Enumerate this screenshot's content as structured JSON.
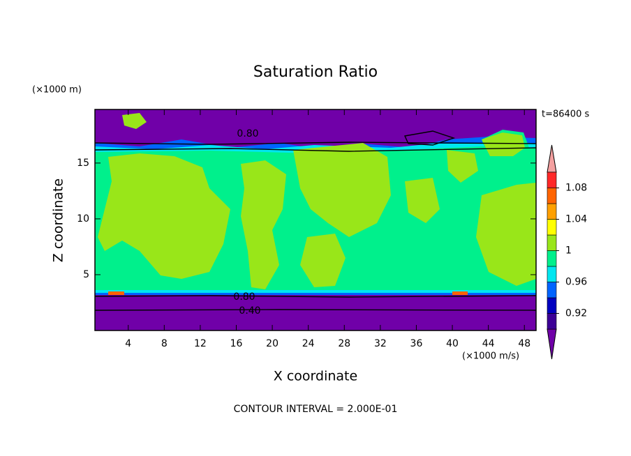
{
  "chart_data": {
    "type": "contourf",
    "title": "Saturation Ratio",
    "y_units": "(×1000 m)",
    "x_units": "(×1000 m/s)",
    "time_label": "t=86400 s",
    "x_label": "X coordinate",
    "y_label": "Z coordinate",
    "footer": "CONTOUR INTERVAL = 2.000E-01",
    "xlim": [
      0.3,
      49.3
    ],
    "xticks": [
      4,
      8,
      12,
      16,
      20,
      24,
      28,
      32,
      36,
      40,
      44,
      48
    ],
    "ylim": [
      0,
      19.8
    ],
    "yticks": [
      5,
      10,
      15
    ],
    "contour_labels": [
      {
        "value": 0.8,
        "label": "0.80"
      },
      {
        "value": 0.8,
        "label": "0.80"
      },
      {
        "value": 0.4,
        "label": "0.40"
      }
    ],
    "colorbar": {
      "boundaries": [
        0.9,
        0.92,
        0.94,
        0.96,
        0.98,
        1,
        1.02,
        1.04,
        1.06,
        1.08,
        1.1
      ],
      "colors": [
        "#7000a8",
        "#3c0096",
        "#0000c0",
        "#0064ff",
        "#00e6f0",
        "#00f08c",
        "#99e619",
        "#ffff00",
        "#ffa000",
        "#ff6400",
        "#ff2828",
        "#f4a0a0"
      ],
      "ticks": [
        {
          "value": 0.92,
          "label": "0.92"
        },
        {
          "value": 0.96,
          "label": "0.96"
        },
        1,
        {
          "value": 1.04,
          "label": "1.04"
        },
        {
          "value": 1.08,
          "label": "1.08"
        }
      ]
    }
  }
}
